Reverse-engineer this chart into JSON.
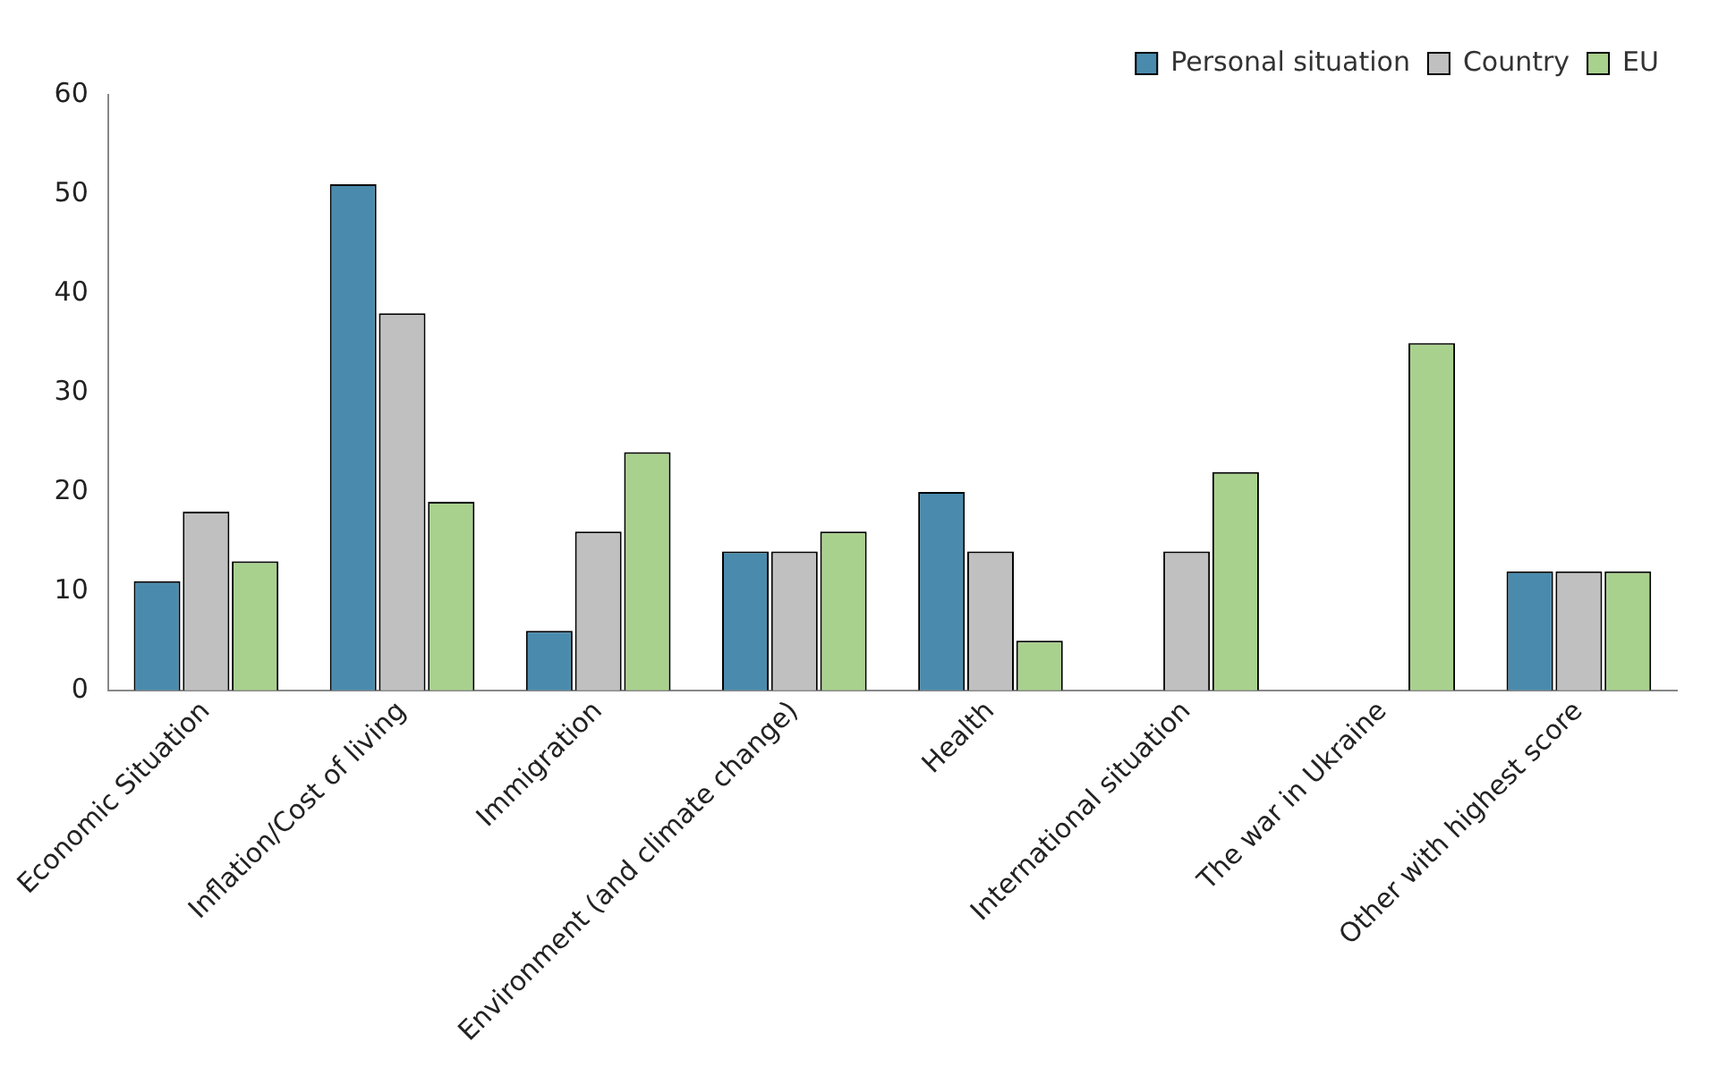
{
  "chart_data": {
    "type": "bar",
    "categories": [
      "Economic Situation",
      "Inflation/Cost of living",
      "Immigration",
      "Environment (and climate change)",
      "Health",
      "International situation",
      "The war in Ukraine",
      "Other with highest score"
    ],
    "series": [
      {
        "name": "Personal situation",
        "color": "#4a8bad",
        "values": [
          11,
          51,
          6,
          14,
          20,
          null,
          null,
          12
        ]
      },
      {
        "name": "Country",
        "color": "#c0c0c0",
        "values": [
          18,
          38,
          16,
          14,
          14,
          14,
          null,
          12
        ]
      },
      {
        "name": "EU",
        "color": "#a9d18e",
        "values": [
          13,
          19,
          24,
          16,
          5,
          22,
          35,
          12
        ]
      }
    ],
    "ylim": [
      0,
      60
    ],
    "yticks": [
      0,
      10,
      20,
      30,
      40,
      50,
      60
    ],
    "grid": false,
    "legend": "top right"
  }
}
